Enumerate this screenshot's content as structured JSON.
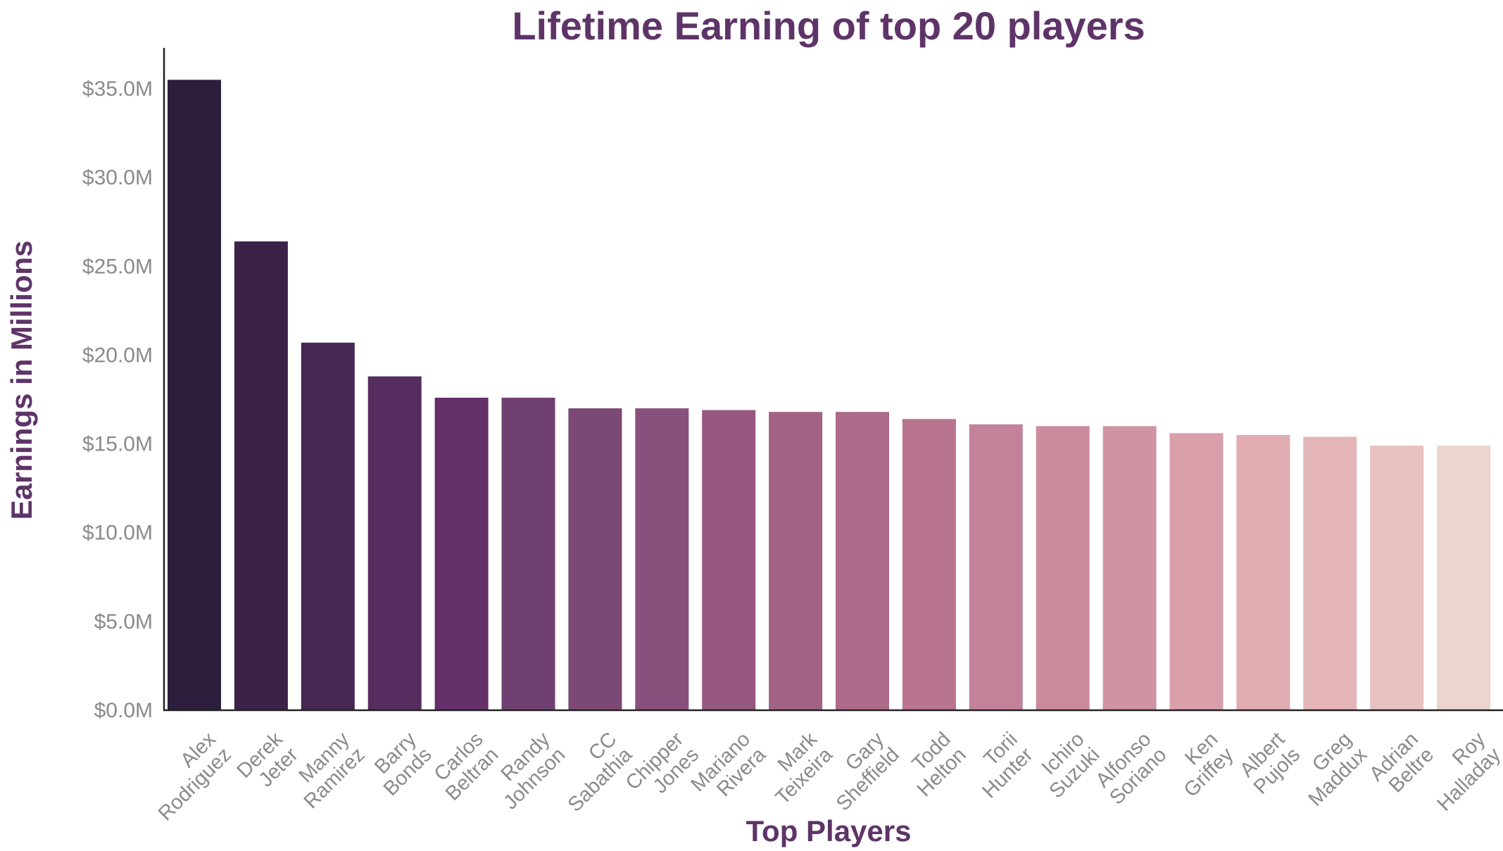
{
  "chart_data": {
    "type": "bar",
    "title": "Lifetime Earning of top 20 players",
    "xlabel": "Top Players",
    "ylabel": "Earnings in Millions",
    "ylim": [
      0,
      37.3
    ],
    "yticks": [
      0,
      5,
      10,
      15,
      20,
      25,
      30,
      35
    ],
    "ytick_labels": [
      "$0.0M",
      "$5.0M",
      "$10.0M",
      "$15.0M",
      "$20.0M",
      "$25.0M",
      "$30.0M",
      "$35.0M"
    ],
    "grid": false,
    "categories": [
      [
        "Alex",
        "Rodriguez"
      ],
      [
        "Derek",
        "Jeter"
      ],
      [
        "Manny",
        "Ramirez"
      ],
      [
        "Barry",
        "Bonds"
      ],
      [
        "Carlos",
        "Beltran"
      ],
      [
        "Randy",
        "Johnson"
      ],
      [
        "CC",
        "Sabathia"
      ],
      [
        "Chipper",
        "Jones"
      ],
      [
        "Mariano",
        "Rivera"
      ],
      [
        "Mark",
        "Teixeira"
      ],
      [
        "Gary",
        "Sheffield"
      ],
      [
        "Todd",
        "Helton"
      ],
      [
        "Torii",
        "Hunter"
      ],
      [
        "Ichiro",
        "Suzuki"
      ],
      [
        "Alfonso",
        "Soriano"
      ],
      [
        "Ken",
        "Griffey"
      ],
      [
        "Albert",
        "Pujols"
      ],
      [
        "Greg",
        "Maddux"
      ],
      [
        "Adrian",
        "Beltre"
      ],
      [
        "Roy",
        "Halladay"
      ]
    ],
    "values": [
      35.5,
      26.4,
      20.7,
      18.8,
      17.6,
      17.6,
      17.0,
      17.0,
      16.9,
      16.8,
      16.8,
      16.4,
      16.1,
      16.0,
      16.0,
      15.6,
      15.5,
      15.4,
      14.9,
      14.9
    ],
    "colors": [
      "#2d1e3e",
      "#3a2249",
      "#462652",
      "#552e5f",
      "#652f6a",
      "#703f72",
      "#7c4876",
      "#88507d",
      "#96587f",
      "#a16284",
      "#ae6a89",
      "#b9758f",
      "#c38299",
      "#cb8b9c",
      "#d093a2",
      "#d99fab",
      "#e0acb1",
      "#e4b5b8",
      "#e8c1c1",
      "#ecd5cf"
    ]
  }
}
